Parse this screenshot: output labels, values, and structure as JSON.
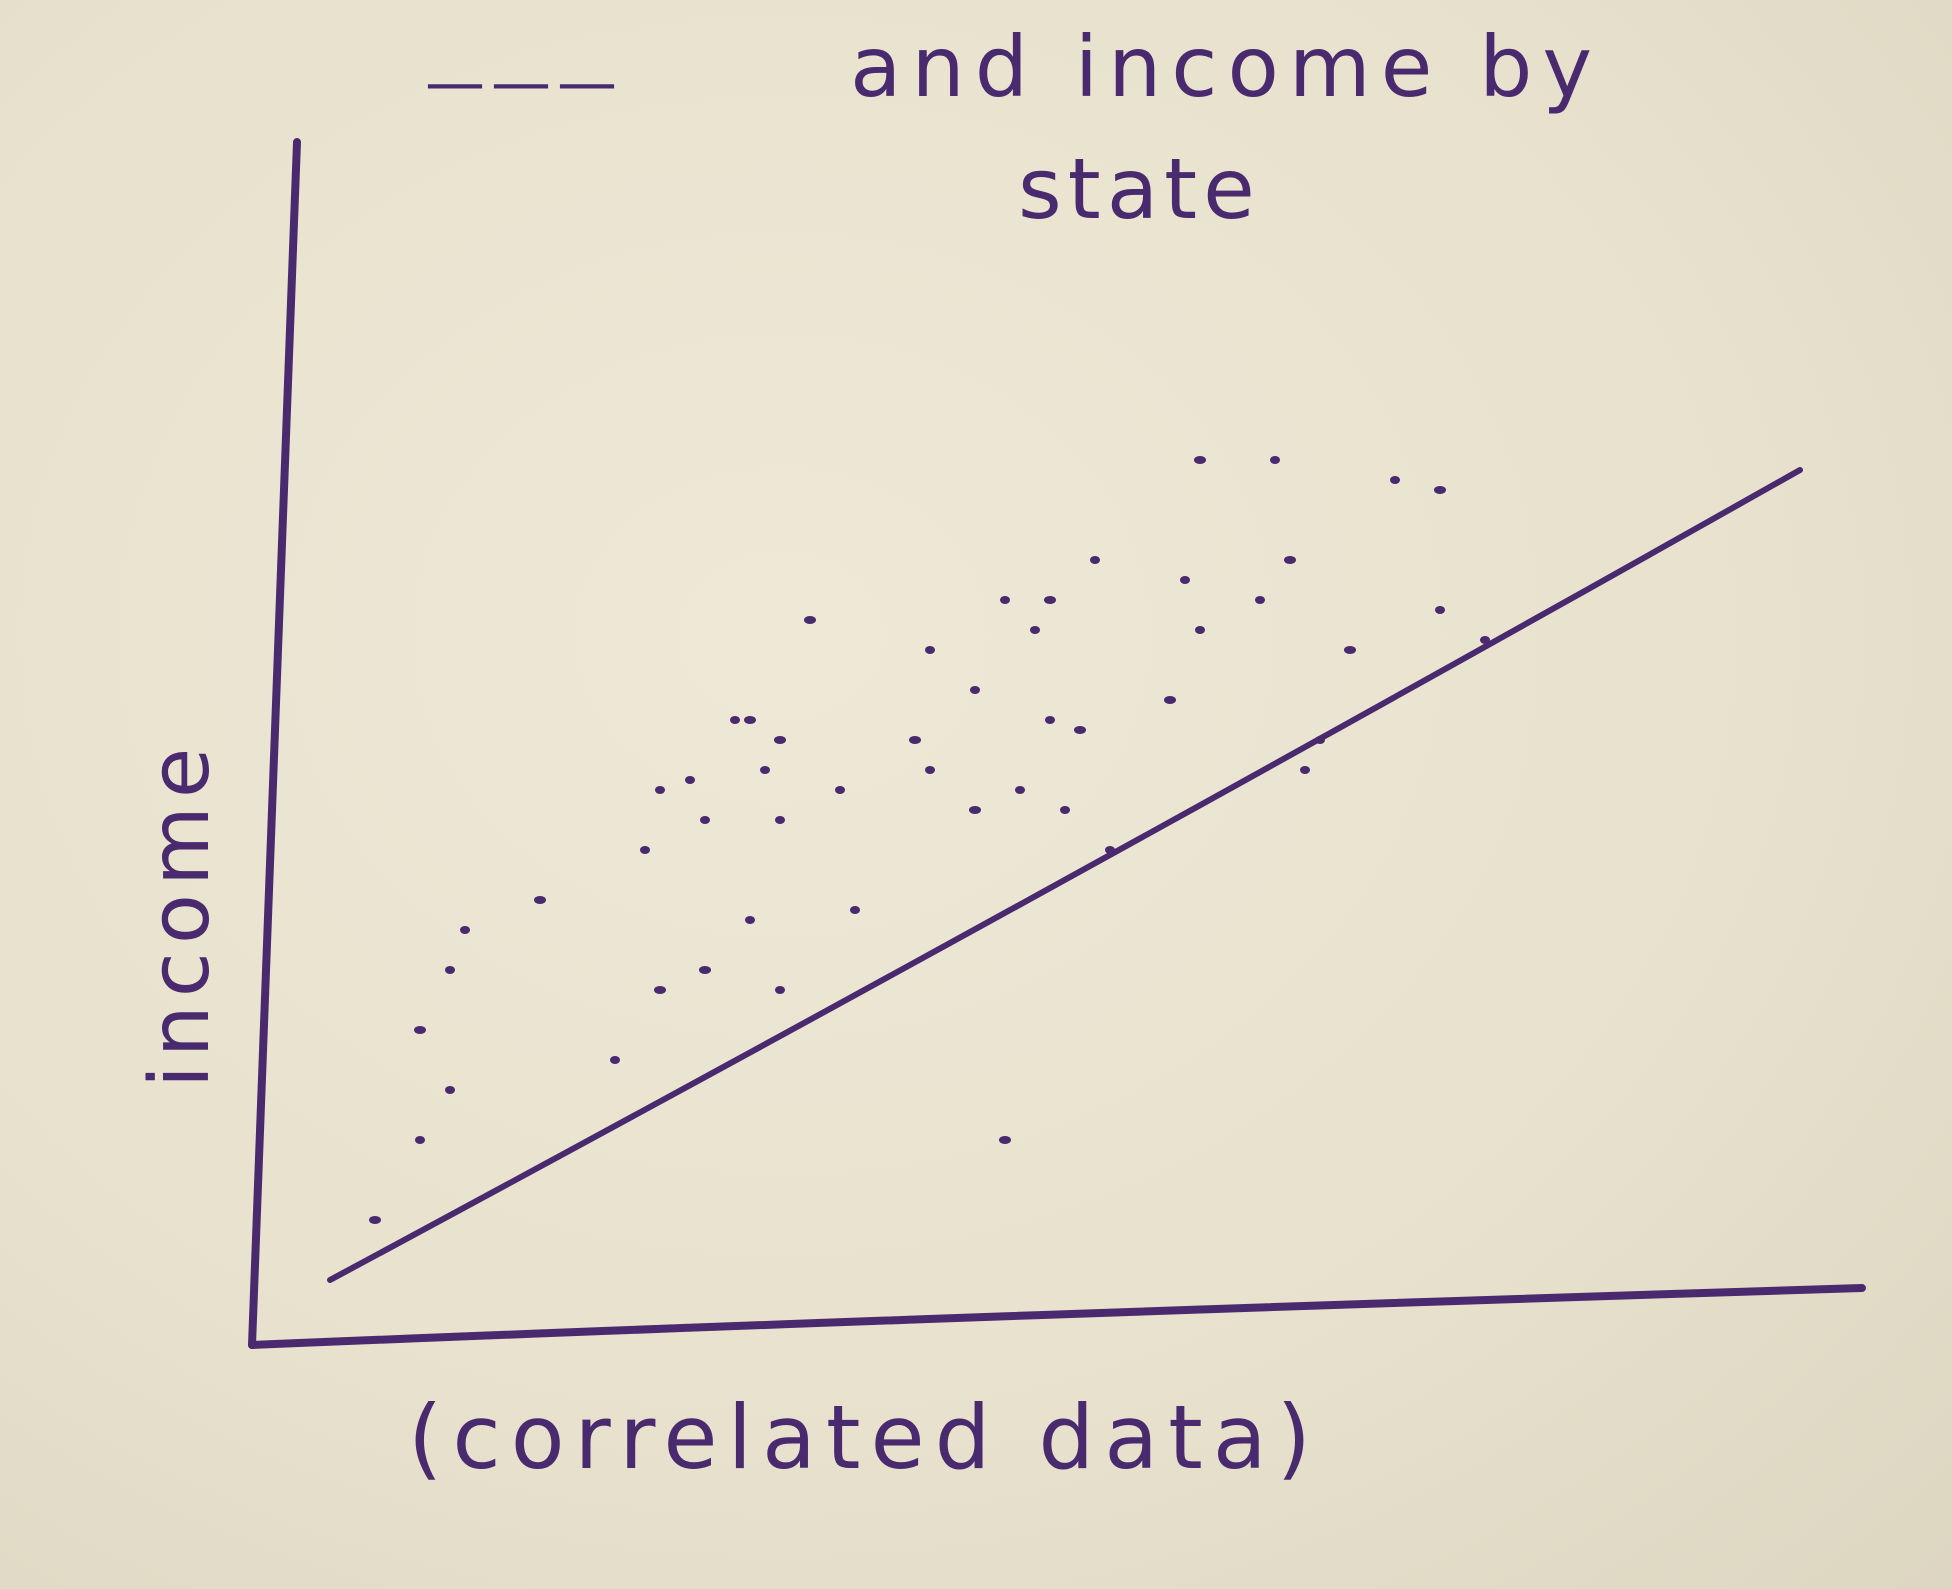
{
  "chart_data": {
    "type": "scatter",
    "title": "——— and income by state",
    "title_line1": "and income by",
    "title_line2": "state",
    "title_blank": "———",
    "xlabel": "(correlated data)",
    "ylabel": "income",
    "xlim": [
      0,
      100
    ],
    "ylim": [
      0,
      100
    ],
    "grid": false,
    "ink_color": "#4a2a6e",
    "series": [
      {
        "values": [
          [
            5,
            8
          ],
          [
            8,
            16
          ],
          [
            10,
            21
          ],
          [
            8,
            27
          ],
          [
            10,
            33
          ],
          [
            11,
            37
          ],
          [
            16,
            40
          ],
          [
            21,
            24
          ],
          [
            23,
            45
          ],
          [
            24,
            31
          ],
          [
            24,
            51
          ],
          [
            26,
            52
          ],
          [
            27,
            33
          ],
          [
            27,
            48
          ],
          [
            29,
            58
          ],
          [
            30,
            58
          ],
          [
            30,
            38
          ],
          [
            31,
            53
          ],
          [
            32,
            56
          ],
          [
            32,
            48
          ],
          [
            32,
            31
          ],
          [
            34,
            68
          ],
          [
            36,
            51
          ],
          [
            37,
            39
          ],
          [
            41,
            56
          ],
          [
            42,
            53
          ],
          [
            42,
            65
          ],
          [
            45,
            49
          ],
          [
            45,
            61
          ],
          [
            47,
            70
          ],
          [
            47,
            16
          ],
          [
            48,
            51
          ],
          [
            49,
            67
          ],
          [
            50,
            70
          ],
          [
            50,
            58
          ],
          [
            51,
            49
          ],
          [
            52,
            57
          ],
          [
            53,
            74
          ],
          [
            54,
            45
          ],
          [
            58,
            60
          ],
          [
            59,
            72
          ],
          [
            60,
            67
          ],
          [
            60,
            84
          ],
          [
            64,
            70
          ],
          [
            65,
            84
          ],
          [
            66,
            74
          ],
          [
            67,
            53
          ],
          [
            68,
            56
          ],
          [
            70,
            65
          ],
          [
            73,
            82
          ],
          [
            76,
            69
          ],
          [
            76,
            81
          ],
          [
            79,
            66
          ]
        ]
      }
    ],
    "trend_line": {
      "x": [
        2,
        100
      ],
      "y": [
        2,
        83
      ]
    }
  }
}
